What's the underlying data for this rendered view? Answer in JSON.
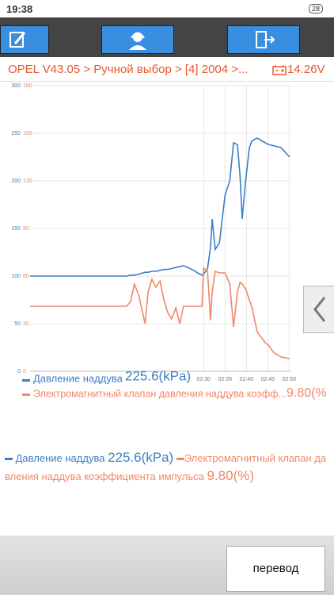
{
  "status_bar": {
    "time": "19:38",
    "battery": "28"
  },
  "breadcrumb": "OPEL V43.05 > Ручной выбор > [4] 2004 >...",
  "voltage": "14.26V",
  "chart_data": {
    "type": "line",
    "x": [
      109.4,
      113.5,
      120.9,
      128.3,
      132.0,
      132.9,
      133.8,
      134.8,
      136.3,
      137.0,
      137.9,
      138.8,
      139.8,
      140.7,
      141.6,
      142.5,
      143.5,
      144.4,
      145.3,
      147.7,
      148.7,
      149.6,
      150.0,
      150.9,
      151.6,
      152.0,
      152.7,
      153.7,
      155.0,
      156.1,
      157.0,
      157.9,
      158.5,
      159.0,
      159.8,
      160.7,
      161.3,
      162.5,
      164.4,
      165.3,
      166.3,
      168.1,
      170.1
    ],
    "xlim": [
      109.4,
      170.3
    ],
    "xticks": [
      {
        "value": 150,
        "label": "02:30"
      },
      {
        "value": 155,
        "label": "02:35"
      },
      {
        "value": 160,
        "label": "02:40"
      },
      {
        "value": 165,
        "label": "02:45"
      },
      {
        "value": 170,
        "label": "02:50"
      }
    ],
    "ylim": [
      0,
      300
    ],
    "yticks": [
      0,
      50,
      100,
      150,
      200,
      250,
      300
    ],
    "y2lim": [
      0,
      180
    ],
    "y2ticks": [
      0,
      30,
      60,
      90,
      120,
      150,
      180
    ],
    "grid": true,
    "series": [
      {
        "name": "Давление наддува",
        "color": "#3b7fc6",
        "values": [
          100,
          100,
          100,
          100,
          100,
          101,
          101,
          102,
          104,
          104,
          105,
          105,
          106,
          107,
          107,
          108,
          109,
          110,
          111,
          106,
          103,
          101,
          102,
          108,
          130,
          160,
          128,
          135,
          185,
          200,
          240,
          238,
          205,
          160,
          200,
          235,
          242,
          245,
          240,
          238,
          237,
          235,
          225
        ]
      },
      {
        "name": "Электромагнитный клапан давления наддува коэффициента импульса",
        "color": "#f0876a",
        "axis": "y2",
        "values": [
          41,
          41,
          41,
          41,
          41,
          44,
          55,
          48,
          30,
          50,
          58,
          53,
          57,
          45,
          37,
          33,
          40,
          30,
          41,
          41,
          41,
          41,
          65,
          63,
          32,
          50,
          63,
          62,
          62,
          55,
          28,
          50,
          56,
          55,
          52,
          45,
          40,
          25,
          18,
          16,
          12,
          9,
          8
        ]
      }
    ],
    "overlay_legend": [
      "Давление наддува",
      "225.6(kPa)",
      "Электромагнитный клапан давления наддува коэфф...",
      "9.80(%"
    ]
  },
  "legend": {
    "readings": [
      "225.6(kPa)",
      "9.80(%)"
    ]
  },
  "button": "перевод"
}
